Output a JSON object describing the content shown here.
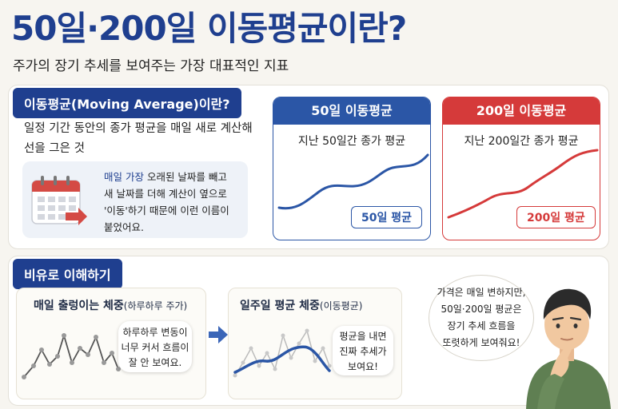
{
  "header": {
    "title": "50일·200일 이동평균이란?",
    "subtitle": "주가의 장기 추세를 보여주는 가장 대표적인 지표"
  },
  "definition": {
    "tag": "이동평균(Moving Average)이란?",
    "line1": "일정 기간 동안의 종가 평균을 매일 새로 계산해",
    "line2": "선을 그은 것",
    "note": {
      "l1a": "매일 가장",
      "l1b": " 오래된 날짜를 빼고",
      "l2": "새 날짜를 더해 계산이 옆으로",
      "l3": "'이동'하기 때문에 이런 이름이",
      "l4": "붙었어요."
    }
  },
  "cards": [
    {
      "header": "50일 이동평균",
      "desc": "지난 50일간 종가 평균",
      "badge": "50일 평균",
      "color": "#2b56a6"
    },
    {
      "header": "200일 이동평균",
      "desc": "지난 200일간 종가 평균",
      "badge": "200일 평균",
      "color": "#d53a3a"
    }
  ],
  "analogy": {
    "tag": "비유로 이해하기",
    "daily": {
      "title_bold": "매일 출렁이는 체중",
      "title_small": "(하루하루 주가)",
      "bubble": [
        "하루하루 변동이",
        "너무 커서 흐름이",
        "잘 안 보여요."
      ]
    },
    "weekly": {
      "title_bold": "일주일 평균 체중",
      "title_small": "(이동평균)",
      "bubble": [
        "평균을 내면",
        "진짜 추세가",
        "보여요!"
      ]
    },
    "speech": [
      "가격은 매일 변하지만,",
      "50일·200일 평균은",
      "장기 추세 흐름을",
      "또렷하게 보여줘요!"
    ]
  },
  "icons": {
    "calendar": "calendar-icon",
    "arrow": "right-arrow-icon",
    "person": "thinking-person-illustration"
  }
}
